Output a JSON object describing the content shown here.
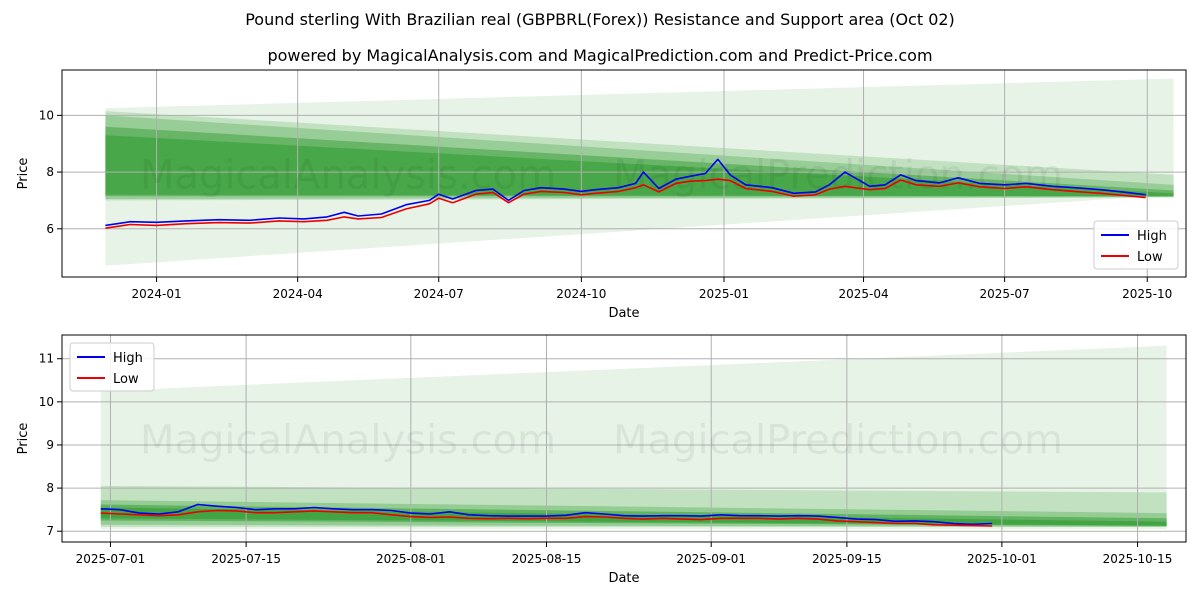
{
  "titles": {
    "main": "Pound sterling With Brazilian real (GBPBRL(Forex)) Resistance and Support area (Oct 02)",
    "sub": "powered by MagicalAnalysis.com and MagicalPrediction.com and Predict-Price.com"
  },
  "watermark": {
    "left": "MagicalAnalysis.com",
    "right": "MagicalPrediction.com"
  },
  "colors": {
    "high": "#0000ee",
    "low": "#ee0000",
    "band": "#2e9a2e",
    "grid": "#b0b0b0"
  },
  "chart_data": [
    {
      "type": "line",
      "xlabel": "Date",
      "ylabel": "Price",
      "xlim": [
        "2023-11-01",
        "2025-10-26"
      ],
      "ylim": [
        4.3,
        11.6
      ],
      "yticks": [
        6,
        8,
        10
      ],
      "xticks": [
        "2024-01",
        "2024-04",
        "2024-07",
        "2024-10",
        "2025-01",
        "2025-04",
        "2025-07",
        "2025-10"
      ],
      "grid": true,
      "legend_position": "lower-right",
      "series": [
        {
          "name": "High",
          "x": [
            "2023-11-29",
            "2023-12-15",
            "2024-01-01",
            "2024-01-20",
            "2024-02-10",
            "2024-03-01",
            "2024-03-20",
            "2024-04-05",
            "2024-04-20",
            "2024-05-01",
            "2024-05-10",
            "2024-05-25",
            "2024-06-10",
            "2024-06-25",
            "2024-07-01",
            "2024-07-10",
            "2024-07-25",
            "2024-08-05",
            "2024-08-15",
            "2024-08-25",
            "2024-09-05",
            "2024-09-20",
            "2024-10-01",
            "2024-10-10",
            "2024-10-25",
            "2024-11-05",
            "2024-11-10",
            "2024-11-20",
            "2024-12-01",
            "2024-12-10",
            "2024-12-20",
            "2024-12-28",
            "2025-01-05",
            "2025-01-15",
            "2025-02-01",
            "2025-02-15",
            "2025-03-01",
            "2025-03-10",
            "2025-03-20",
            "2025-04-05",
            "2025-04-15",
            "2025-04-25",
            "2025-05-05",
            "2025-05-20",
            "2025-06-01",
            "2025-06-15",
            "2025-07-01",
            "2025-07-15",
            "2025-08-01",
            "2025-08-15",
            "2025-09-01",
            "2025-09-15",
            "2025-09-30"
          ],
          "values": [
            6.12,
            6.25,
            6.23,
            6.28,
            6.32,
            6.3,
            6.38,
            6.35,
            6.42,
            6.58,
            6.45,
            6.52,
            6.85,
            7.0,
            7.22,
            7.05,
            7.35,
            7.4,
            7.0,
            7.35,
            7.45,
            7.4,
            7.32,
            7.38,
            7.45,
            7.6,
            8.0,
            7.42,
            7.75,
            7.85,
            7.95,
            8.45,
            7.9,
            7.55,
            7.45,
            7.25,
            7.3,
            7.55,
            8.0,
            7.5,
            7.55,
            7.9,
            7.7,
            7.62,
            7.8,
            7.6,
            7.55,
            7.6,
            7.5,
            7.45,
            7.38,
            7.3,
            7.2
          ]
        },
        {
          "name": "Low",
          "x": [
            "2023-11-29",
            "2023-12-15",
            "2024-01-01",
            "2024-01-20",
            "2024-02-10",
            "2024-03-01",
            "2024-03-20",
            "2024-04-05",
            "2024-04-20",
            "2024-05-01",
            "2024-05-10",
            "2024-05-25",
            "2024-06-10",
            "2024-06-25",
            "2024-07-01",
            "2024-07-10",
            "2024-07-25",
            "2024-08-05",
            "2024-08-15",
            "2024-08-25",
            "2024-09-05",
            "2024-09-20",
            "2024-10-01",
            "2024-10-10",
            "2024-10-25",
            "2024-11-05",
            "2024-11-10",
            "2024-11-20",
            "2024-12-01",
            "2024-12-10",
            "2024-12-20",
            "2024-12-28",
            "2025-01-05",
            "2025-01-15",
            "2025-02-01",
            "2025-02-15",
            "2025-03-01",
            "2025-03-10",
            "2025-03-20",
            "2025-04-05",
            "2025-04-15",
            "2025-04-25",
            "2025-05-05",
            "2025-05-20",
            "2025-06-01",
            "2025-06-15",
            "2025-07-01",
            "2025-07-15",
            "2025-08-01",
            "2025-08-15",
            "2025-09-01",
            "2025-09-15",
            "2025-09-30"
          ],
          "values": [
            6.02,
            6.15,
            6.12,
            6.18,
            6.22,
            6.2,
            6.28,
            6.25,
            6.3,
            6.42,
            6.35,
            6.4,
            6.7,
            6.88,
            7.08,
            6.92,
            7.22,
            7.28,
            6.92,
            7.22,
            7.32,
            7.28,
            7.2,
            7.25,
            7.32,
            7.45,
            7.55,
            7.3,
            7.6,
            7.68,
            7.7,
            7.75,
            7.7,
            7.42,
            7.32,
            7.15,
            7.2,
            7.4,
            7.5,
            7.38,
            7.42,
            7.72,
            7.55,
            7.5,
            7.62,
            7.48,
            7.42,
            7.48,
            7.38,
            7.32,
            7.25,
            7.18,
            7.1
          ]
        }
      ],
      "bands": [
        {
          "x_start": "2023-11-29",
          "x_end": "2025-10-18",
          "lower_start": 4.7,
          "upper_start": 10.25,
          "lower_end": 7.2,
          "upper_end": 11.3,
          "opacity": 0.12
        },
        {
          "x_start": "2023-11-29",
          "x_end": "2025-10-18",
          "lower_start": 7.0,
          "upper_start": 10.15,
          "lower_end": 7.1,
          "upper_end": 7.9,
          "opacity": 0.2
        },
        {
          "x_start": "2023-11-29",
          "x_end": "2025-10-18",
          "lower_start": 7.05,
          "upper_start": 10.0,
          "lower_end": 7.12,
          "upper_end": 7.55,
          "opacity": 0.28
        },
        {
          "x_start": "2023-11-29",
          "x_end": "2025-10-18",
          "lower_start": 7.15,
          "upper_start": 9.6,
          "lower_end": 7.14,
          "upper_end": 7.35,
          "opacity": 0.45
        },
        {
          "x_start": "2023-11-29",
          "x_end": "2025-10-18",
          "lower_start": 7.2,
          "upper_start": 9.3,
          "lower_end": 7.15,
          "upper_end": 7.25,
          "opacity": 0.55
        }
      ]
    },
    {
      "type": "line",
      "xlabel": "Date",
      "ylabel": "Price",
      "xlim": [
        "2025-06-26",
        "2025-10-20"
      ],
      "ylim": [
        6.75,
        11.55
      ],
      "yticks": [
        7,
        8,
        9,
        10,
        11
      ],
      "xticks": [
        "2025-07-01",
        "2025-07-15",
        "2025-08-01",
        "2025-08-15",
        "2025-09-01",
        "2025-09-15",
        "2025-10-01",
        "2025-10-15"
      ],
      "grid": true,
      "legend_position": "upper-left",
      "series": [
        {
          "name": "High",
          "x": [
            "2025-06-30",
            "2025-07-02",
            "2025-07-04",
            "2025-07-06",
            "2025-07-08",
            "2025-07-10",
            "2025-07-12",
            "2025-07-14",
            "2025-07-16",
            "2025-07-18",
            "2025-07-20",
            "2025-07-22",
            "2025-07-24",
            "2025-07-26",
            "2025-07-28",
            "2025-07-30",
            "2025-08-01",
            "2025-08-03",
            "2025-08-05",
            "2025-08-07",
            "2025-08-09",
            "2025-08-11",
            "2025-08-13",
            "2025-08-15",
            "2025-08-17",
            "2025-08-19",
            "2025-08-21",
            "2025-08-23",
            "2025-08-25",
            "2025-08-27",
            "2025-08-29",
            "2025-08-31",
            "2025-09-02",
            "2025-09-04",
            "2025-09-06",
            "2025-09-08",
            "2025-09-10",
            "2025-09-12",
            "2025-09-14",
            "2025-09-16",
            "2025-09-18",
            "2025-09-20",
            "2025-09-22",
            "2025-09-24",
            "2025-09-26",
            "2025-09-28",
            "2025-09-30"
          ],
          "values": [
            7.52,
            7.5,
            7.42,
            7.4,
            7.45,
            7.62,
            7.58,
            7.55,
            7.5,
            7.52,
            7.52,
            7.55,
            7.52,
            7.5,
            7.5,
            7.48,
            7.42,
            7.4,
            7.45,
            7.38,
            7.36,
            7.35,
            7.35,
            7.35,
            7.37,
            7.43,
            7.4,
            7.36,
            7.35,
            7.36,
            7.36,
            7.35,
            7.38,
            7.36,
            7.36,
            7.35,
            7.36,
            7.35,
            7.32,
            7.28,
            7.27,
            7.23,
            7.24,
            7.22,
            7.18,
            7.16,
            7.18
          ]
        },
        {
          "name": "Low",
          "x": [
            "2025-06-30",
            "2025-07-02",
            "2025-07-04",
            "2025-07-06",
            "2025-07-08",
            "2025-07-10",
            "2025-07-12",
            "2025-07-14",
            "2025-07-16",
            "2025-07-18",
            "2025-07-20",
            "2025-07-22",
            "2025-07-24",
            "2025-07-26",
            "2025-07-28",
            "2025-07-30",
            "2025-08-01",
            "2025-08-03",
            "2025-08-05",
            "2025-08-07",
            "2025-08-09",
            "2025-08-11",
            "2025-08-13",
            "2025-08-15",
            "2025-08-17",
            "2025-08-19",
            "2025-08-21",
            "2025-08-23",
            "2025-08-25",
            "2025-08-27",
            "2025-08-29",
            "2025-08-31",
            "2025-09-02",
            "2025-09-04",
            "2025-09-06",
            "2025-09-08",
            "2025-09-10",
            "2025-09-12",
            "2025-09-14",
            "2025-09-16",
            "2025-09-18",
            "2025-09-20",
            "2025-09-22",
            "2025-09-24",
            "2025-09-26",
            "2025-09-28",
            "2025-09-30"
          ],
          "values": [
            7.42,
            7.4,
            7.38,
            7.36,
            7.38,
            7.45,
            7.48,
            7.47,
            7.43,
            7.43,
            7.45,
            7.47,
            7.45,
            7.43,
            7.43,
            7.38,
            7.34,
            7.32,
            7.33,
            7.3,
            7.29,
            7.3,
            7.29,
            7.3,
            7.3,
            7.34,
            7.33,
            7.3,
            7.28,
            7.3,
            7.28,
            7.27,
            7.3,
            7.3,
            7.3,
            7.28,
            7.3,
            7.28,
            7.24,
            7.22,
            7.2,
            7.18,
            7.18,
            7.15,
            7.14,
            7.13,
            7.12
          ]
        }
      ],
      "bands": [
        {
          "x_start": "2025-06-30",
          "x_end": "2025-10-18",
          "lower_start": 7.05,
          "upper_start": 10.25,
          "lower_end": 7.05,
          "upper_end": 11.3,
          "opacity": 0.12
        },
        {
          "x_start": "2025-06-30",
          "x_end": "2025-10-18",
          "lower_start": 7.1,
          "upper_start": 8.05,
          "lower_end": 7.1,
          "upper_end": 7.9,
          "opacity": 0.2
        },
        {
          "x_start": "2025-06-30",
          "x_end": "2025-10-18",
          "lower_start": 7.15,
          "upper_start": 7.72,
          "lower_end": 7.1,
          "upper_end": 7.42,
          "opacity": 0.3
        },
        {
          "x_start": "2025-06-30",
          "x_end": "2025-10-18",
          "lower_start": 7.25,
          "upper_start": 7.62,
          "lower_end": 7.12,
          "upper_end": 7.3,
          "opacity": 0.5
        },
        {
          "x_start": "2025-06-30",
          "x_end": "2025-10-18",
          "lower_start": 7.3,
          "upper_start": 7.55,
          "lower_end": 7.13,
          "upper_end": 7.22,
          "opacity": 0.6
        }
      ]
    }
  ]
}
